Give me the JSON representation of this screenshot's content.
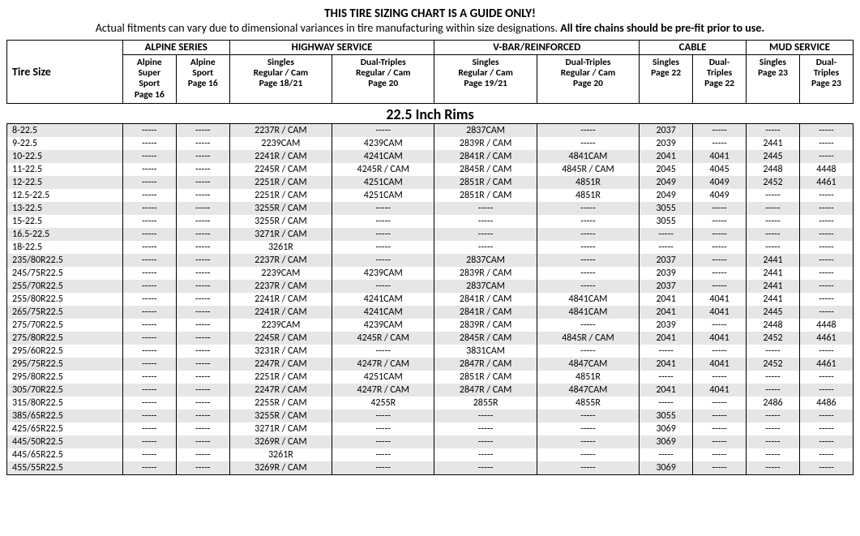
{
  "title": {
    "main": "THIS TIRE SIZING CHART IS A GUIDE ONLY!",
    "sub_plain": "Actual fitments can vary due to dimensional variances in tire manufacturing within size designations. ",
    "sub_bold": "All tire chains should be pre-fit prior to use."
  },
  "colors": {
    "row_even_bg": "#e6e6e6",
    "row_odd_bg": "#ffffff",
    "border": "#000000",
    "text": "#000000"
  },
  "headers": {
    "tire_size": "Tire Size",
    "groups": [
      {
        "label": "ALPINE SERIES",
        "span": 2
      },
      {
        "label": "HIGHWAY SERVICE",
        "span": 2
      },
      {
        "label": "V-BAR/REINFORCED",
        "span": 2
      },
      {
        "label": "CABLE",
        "span": 2
      },
      {
        "label": "MUD SERVICE",
        "span": 2
      }
    ],
    "subs": [
      "Alpine\nSuper\nSport\nPage 16",
      "Alpine\nSport\nPage 16",
      "Singles\nRegular / Cam\nPage 18/21",
      "Dual-Triples\nRegular / Cam\nPage 20",
      "Singles\nRegular / Cam\nPage 19/21",
      "Dual-Triples\nRegular / Cam\nPage 20",
      "Singles\nPage 22",
      "Dual-\nTriples\nPage 22",
      "Singles\nPage 23",
      "Dual-\nTriples\nPage 23"
    ]
  },
  "section_title": "22.5 Inch Rims",
  "empty_cell": "-----",
  "rows": [
    {
      "size": "8-22.5",
      "cells": [
        "",
        "",
        "2237R / CAM",
        "",
        "2837CAM",
        "",
        "2037",
        "",
        "",
        ""
      ]
    },
    {
      "size": "9-22.5",
      "cells": [
        "",
        "",
        "2239CAM",
        "4239CAM",
        "2839R / CAM",
        "",
        "2039",
        "",
        "2441",
        ""
      ]
    },
    {
      "size": "10-22.5",
      "cells": [
        "",
        "",
        "2241R / CAM",
        "4241CAM",
        "2841R / CAM",
        "4841CAM",
        "2041",
        "4041",
        "2445",
        ""
      ]
    },
    {
      "size": "11-22.5",
      "cells": [
        "",
        "",
        "2245R / CAM",
        "4245R / CAM",
        "2845R / CAM",
        "4845R / CAM",
        "2045",
        "4045",
        "2448",
        "4448"
      ]
    },
    {
      "size": "12-22.5",
      "cells": [
        "",
        "",
        "2251R / CAM",
        "4251CAM",
        "2851R / CAM",
        "4851R",
        "2049",
        "4049",
        "2452",
        "4461"
      ]
    },
    {
      "size": "12.5-22.5",
      "cells": [
        "",
        "",
        "2251R / CAM",
        "4251CAM",
        "2851R / CAM",
        "4851R",
        "2049",
        "4049",
        "",
        ""
      ]
    },
    {
      "size": "13-22.5",
      "cells": [
        "",
        "",
        "3255R / CAM",
        "",
        "",
        "",
        "3055",
        "",
        "",
        ""
      ]
    },
    {
      "size": "15-22.5",
      "cells": [
        "",
        "",
        "3255R / CAM",
        "",
        "",
        "",
        "3055",
        "",
        "",
        ""
      ]
    },
    {
      "size": "16.5-22.5",
      "cells": [
        "",
        "",
        "3271R / CAM",
        "",
        "",
        "",
        "",
        "",
        "",
        ""
      ]
    },
    {
      "size": "18-22.5",
      "cells": [
        "",
        "",
        "3261R",
        "",
        "",
        "",
        "",
        "",
        "",
        ""
      ]
    },
    {
      "size": "235/80R22.5",
      "cells": [
        "",
        "",
        "2237R / CAM",
        "",
        "2837CAM",
        "",
        "2037",
        "",
        "2441",
        ""
      ]
    },
    {
      "size": "245/75R22.5",
      "cells": [
        "",
        "",
        "2239CAM",
        "4239CAM",
        "2839R / CAM",
        "",
        "2039",
        "",
        "2441",
        ""
      ]
    },
    {
      "size": "255/70R22.5",
      "cells": [
        "",
        "",
        "2237R / CAM",
        "",
        "2837CAM",
        "",
        "2037",
        "",
        "2441",
        ""
      ]
    },
    {
      "size": "255/80R22.5",
      "cells": [
        "",
        "",
        "2241R / CAM",
        "4241CAM",
        "2841R / CAM",
        "4841CAM",
        "2041",
        "4041",
        "2441",
        ""
      ]
    },
    {
      "size": "265/75R22.5",
      "cells": [
        "",
        "",
        "2241R / CAM",
        "4241CAM",
        "2841R / CAM",
        "4841CAM",
        "2041",
        "4041",
        "2445",
        ""
      ]
    },
    {
      "size": "275/70R22.5",
      "cells": [
        "",
        "",
        "2239CAM",
        "4239CAM",
        "2839R / CAM",
        "",
        "2039",
        "",
        "2448",
        "4448"
      ]
    },
    {
      "size": "275/80R22.5",
      "cells": [
        "",
        "",
        "2245R / CAM",
        "4245R / CAM",
        "2845R / CAM",
        "4845R / CAM",
        "2041",
        "4041",
        "2452",
        "4461"
      ]
    },
    {
      "size": "295/60R22.5",
      "cells": [
        "",
        "",
        "3231R / CAM",
        "",
        "3831CAM",
        "",
        "",
        "",
        "",
        ""
      ]
    },
    {
      "size": "295/75R22.5",
      "cells": [
        "",
        "",
        "2247R / CAM",
        "4247R / CAM",
        "2847R / CAM",
        "4847CAM",
        "2041",
        "4041",
        "2452",
        "4461"
      ]
    },
    {
      "size": "295/80R22.5",
      "cells": [
        "",
        "",
        "2251R / CAM",
        "4251CAM",
        "2851R / CAM",
        "4851R",
        "",
        "",
        "",
        ""
      ]
    },
    {
      "size": "305/70R22.5",
      "cells": [
        "",
        "",
        "2247R / CAM",
        "4247R / CAM",
        "2847R / CAM",
        "4847CAM",
        "2041",
        "4041",
        "",
        ""
      ]
    },
    {
      "size": "315/80R22.5",
      "cells": [
        "",
        "",
        "2255R / CAM",
        "4255R",
        "2855R",
        "4855R",
        "",
        "",
        "2486",
        "4486"
      ]
    },
    {
      "size": "385/65R22.5",
      "cells": [
        "",
        "",
        "3255R / CAM",
        "",
        "",
        "",
        "3055",
        "",
        "",
        ""
      ]
    },
    {
      "size": "425/65R22.5",
      "cells": [
        "",
        "",
        "3271R / CAM",
        "",
        "",
        "",
        "3069",
        "",
        "",
        ""
      ]
    },
    {
      "size": "445/50R22.5",
      "cells": [
        "",
        "",
        "3269R / CAM",
        "",
        "",
        "",
        "3069",
        "",
        "",
        ""
      ]
    },
    {
      "size": "445/65R22.5",
      "cells": [
        "",
        "",
        "3261R",
        "",
        "",
        "",
        "",
        "",
        "",
        ""
      ]
    },
    {
      "size": "455/55R22.5",
      "cells": [
        "",
        "",
        "3269R / CAM",
        "",
        "",
        "",
        "3069",
        "",
        "",
        ""
      ]
    }
  ]
}
